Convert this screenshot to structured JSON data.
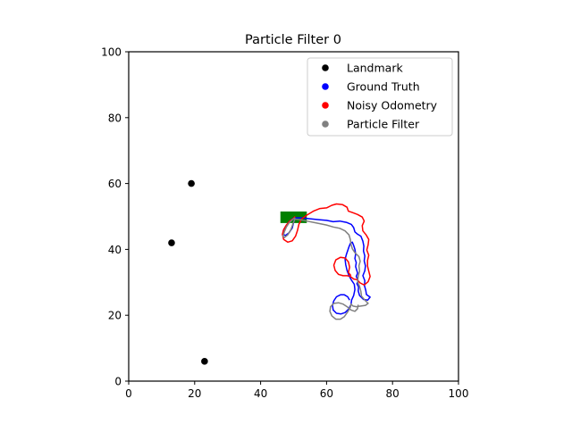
{
  "chart_data": {
    "type": "line",
    "title": "Particle Filter 0",
    "xlabel": "",
    "ylabel": "",
    "xlim": [
      0,
      100
    ],
    "ylim": [
      0,
      100
    ],
    "xticks": [
      0,
      20,
      40,
      60,
      80,
      100
    ],
    "yticks": [
      0,
      20,
      40,
      60,
      80,
      100
    ],
    "grid": false,
    "legend_position": "top-right",
    "legend": [
      {
        "label": "Landmark",
        "color": "#000000"
      },
      {
        "label": "Ground Truth",
        "color": "#0000ff"
      },
      {
        "label": "Noisy Odometry",
        "color": "#ff0000"
      },
      {
        "label": "Particle Filter",
        "color": "#808080"
      }
    ],
    "landmarks": [
      {
        "x": 19,
        "y": 60
      },
      {
        "x": 13,
        "y": 42
      },
      {
        "x": 23,
        "y": 6
      }
    ],
    "start_marker": {
      "x_range": [
        46,
        54
      ],
      "y_range": [
        48,
        51.5
      ],
      "color": "#008000"
    },
    "series": [
      {
        "name": "Ground Truth",
        "color": "#0000ff",
        "points": [
          [
            50.5,
            49.8
          ],
          [
            49.5,
            49.2
          ],
          [
            48.5,
            48.2
          ],
          [
            47.6,
            47.0
          ],
          [
            46.9,
            45.8
          ],
          [
            46.8,
            44.6
          ],
          [
            47.5,
            44.2
          ],
          [
            48.6,
            45.0
          ],
          [
            49.6,
            46.5
          ],
          [
            50.0,
            48.2
          ],
          [
            50.5,
            49.5
          ],
          [
            52,
            49.6
          ],
          [
            54,
            49.4
          ],
          [
            56,
            49.2
          ],
          [
            58,
            49.0
          ],
          [
            60,
            48.8
          ],
          [
            62,
            48.4
          ],
          [
            64,
            48.6
          ],
          [
            66,
            48.2
          ],
          [
            67.5,
            47.6
          ],
          [
            68.2,
            46.6
          ],
          [
            68.6,
            45.3
          ],
          [
            69.4,
            44.6
          ],
          [
            70.4,
            44.0
          ],
          [
            71,
            42.5
          ],
          [
            71.3,
            41.0
          ],
          [
            71.2,
            39.5
          ],
          [
            71.6,
            38.0
          ],
          [
            71.4,
            36.5
          ],
          [
            71.8,
            35.0
          ],
          [
            71.6,
            33.5
          ],
          [
            71.0,
            32.0
          ],
          [
            71.6,
            30.5
          ],
          [
            71.5,
            29.0
          ],
          [
            71.9,
            27.5
          ],
          [
            72.1,
            26.3
          ],
          [
            73.2,
            25.5
          ],
          [
            72.5,
            24.6
          ],
          [
            71.2,
            24.8
          ],
          [
            70.0,
            26.0
          ],
          [
            69.6,
            27.4
          ],
          [
            69.7,
            28.6
          ],
          [
            69.2,
            29.6
          ],
          [
            69.6,
            30.4
          ],
          [
            69.3,
            31.2
          ],
          [
            69.0,
            31.8
          ],
          [
            69.4,
            32.8
          ],
          [
            69.1,
            33.8
          ],
          [
            68.8,
            34.8
          ],
          [
            69.0,
            36.0
          ],
          [
            68.6,
            37.2
          ],
          [
            68.8,
            38.6
          ],
          [
            68.6,
            40.0
          ],
          [
            68.2,
            41.2
          ],
          [
            67.8,
            42.2
          ],
          [
            67.2,
            41.8
          ],
          [
            66.8,
            40.8
          ],
          [
            66.4,
            39.6
          ],
          [
            66.0,
            38.4
          ],
          [
            65.6,
            37.0
          ],
          [
            65.8,
            35.4
          ],
          [
            66.2,
            33.6
          ],
          [
            66.8,
            32.0
          ],
          [
            67.6,
            30.6
          ],
          [
            68.4,
            29.4
          ],
          [
            68.6,
            27.8
          ],
          [
            68.2,
            26.0
          ],
          [
            67.6,
            24.6
          ],
          [
            67.4,
            23.2
          ],
          [
            66.6,
            21.8
          ],
          [
            65.6,
            20.8
          ],
          [
            64.4,
            20.4
          ],
          [
            63.0,
            20.6
          ],
          [
            62.0,
            21.6
          ],
          [
            61.8,
            23.0
          ],
          [
            62.2,
            24.4
          ],
          [
            63.0,
            25.6
          ],
          [
            64.2,
            26.2
          ],
          [
            65.4,
            26.2
          ],
          [
            66.4,
            25.6
          ],
          [
            67.0,
            24.6
          ]
        ]
      },
      {
        "name": "Noisy Odometry",
        "color": "#ff0000",
        "points": [
          [
            50.5,
            50.0
          ],
          [
            49.8,
            49.3
          ],
          [
            48.8,
            48.6
          ],
          [
            47.8,
            47.4
          ],
          [
            47.0,
            46.0
          ],
          [
            46.6,
            44.6
          ],
          [
            47.0,
            43.0
          ],
          [
            48.2,
            42.2
          ],
          [
            49.6,
            42.6
          ],
          [
            50.6,
            44.0
          ],
          [
            51.2,
            45.8
          ],
          [
            51.6,
            47.6
          ],
          [
            52.4,
            49.2
          ],
          [
            54,
            50.4
          ],
          [
            56,
            51.6
          ],
          [
            58,
            52.4
          ],
          [
            60,
            52.6
          ],
          [
            61.6,
            53.4
          ],
          [
            63,
            53.8
          ],
          [
            64.8,
            53.6
          ],
          [
            66.2,
            52.8
          ],
          [
            66.6,
            51.6
          ],
          [
            67.8,
            51.2
          ],
          [
            69.4,
            50.6
          ],
          [
            70.8,
            49.8
          ],
          [
            71.4,
            48.6
          ],
          [
            70.8,
            47.2
          ],
          [
            71.0,
            45.6
          ],
          [
            72.0,
            44.4
          ],
          [
            72.8,
            43.0
          ],
          [
            72.6,
            41.4
          ],
          [
            72.2,
            39.8
          ],
          [
            72.8,
            38.2
          ],
          [
            72.4,
            36.6
          ],
          [
            72.4,
            35.0
          ],
          [
            72.8,
            33.4
          ],
          [
            73.2,
            31.8
          ],
          [
            72.6,
            30.2
          ],
          [
            71.4,
            29.2
          ],
          [
            70.2,
            29.8
          ],
          [
            69.2,
            30.8
          ],
          [
            68.2,
            31.0
          ],
          [
            67.2,
            31.8
          ],
          [
            66.2,
            32.0
          ],
          [
            65.0,
            32.0
          ],
          [
            63.6,
            32.4
          ],
          [
            62.6,
            33.6
          ],
          [
            62.2,
            35.2
          ],
          [
            62.8,
            36.8
          ],
          [
            64.2,
            37.6
          ],
          [
            65.6,
            37.4
          ],
          [
            66.6,
            36.2
          ],
          [
            67.0,
            34.6
          ],
          [
            66.6,
            33.0
          ],
          [
            67.4,
            32.0
          ]
        ]
      },
      {
        "name": "Particle Filter",
        "color": "#808080",
        "points": [
          [
            50.5,
            49.6
          ],
          [
            49.6,
            49.0
          ],
          [
            48.6,
            48.0
          ],
          [
            47.8,
            46.8
          ],
          [
            47.2,
            45.4
          ],
          [
            46.8,
            44.0
          ],
          [
            47.2,
            43.6
          ],
          [
            48.2,
            44.4
          ],
          [
            49.2,
            46.0
          ],
          [
            49.8,
            47.8
          ],
          [
            50.4,
            49.2
          ],
          [
            52,
            49.0
          ],
          [
            54,
            48.6
          ],
          [
            56,
            48.2
          ],
          [
            58,
            47.8
          ],
          [
            60,
            47.4
          ],
          [
            62,
            46.8
          ],
          [
            64,
            46.4
          ],
          [
            65.6,
            45.6
          ],
          [
            66.8,
            44.4
          ],
          [
            67.2,
            43.0
          ],
          [
            67.4,
            41.6
          ],
          [
            67.8,
            40.2
          ],
          [
            68.6,
            39.0
          ],
          [
            69.8,
            37.8
          ],
          [
            70.2,
            36.4
          ],
          [
            69.8,
            35.0
          ],
          [
            70.0,
            33.4
          ],
          [
            69.6,
            31.8
          ],
          [
            69.4,
            30.2
          ],
          [
            70.0,
            28.8
          ],
          [
            70.4,
            27.2
          ],
          [
            70.6,
            25.8
          ],
          [
            71.6,
            24.6
          ],
          [
            72.6,
            23.6
          ],
          [
            71.8,
            23.0
          ],
          [
            70.4,
            22.8
          ],
          [
            69.0,
            22.6
          ],
          [
            68.0,
            22.8
          ],
          [
            67.4,
            23.4
          ],
          [
            67.2,
            22.4
          ],
          [
            66.4,
            21.0
          ],
          [
            65.4,
            19.6
          ],
          [
            64.2,
            18.8
          ],
          [
            62.8,
            18.8
          ],
          [
            61.6,
            19.8
          ],
          [
            61.0,
            21.2
          ],
          [
            61.2,
            22.6
          ],
          [
            62.2,
            23.6
          ],
          [
            63.6,
            23.8
          ],
          [
            65.0,
            23.4
          ],
          [
            66.2,
            22.6
          ],
          [
            67.4,
            21.6
          ],
          [
            68.6,
            21.2
          ],
          [
            69.4,
            22.0
          ],
          [
            69.6,
            23.2
          ]
        ]
      }
    ]
  }
}
